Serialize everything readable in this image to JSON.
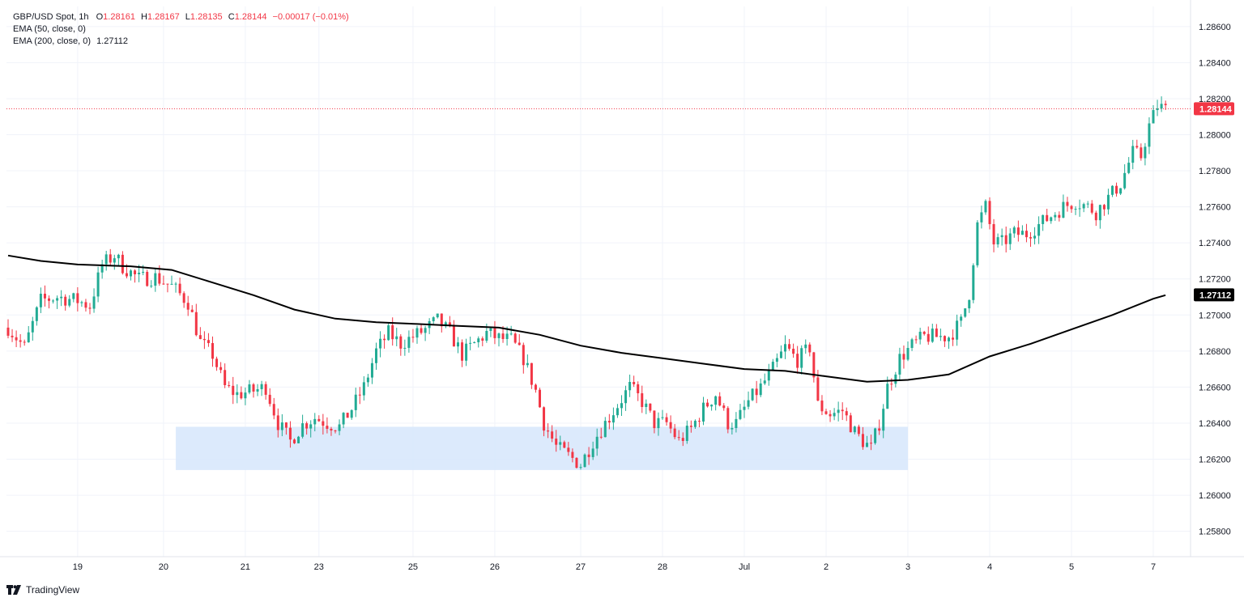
{
  "header": {
    "symbol": "GBP/USD Spot, 1h",
    "o_label": "O",
    "o_value": "1.28161",
    "h_label": "H",
    "h_value": "1.28167",
    "l_label": "L",
    "l_value": "1.28135",
    "c_label": "C",
    "c_value": "1.28144",
    "change": "−0.00017 (−0.01%)",
    "ema50_label": "EMA (50, close, 0)",
    "ema200_label": "EMA (200, close, 0)",
    "ema200_value": "1.27112"
  },
  "brand": {
    "name": "TradingView",
    "icon": "tradingview-logo-icon"
  },
  "colors": {
    "up": "#22ab94",
    "down": "#f23645",
    "ema200": "#000000",
    "zone": "#d6e6fb",
    "grid": "#f0f3fa",
    "price_line": "#f23645"
  },
  "chart_data": {
    "type": "candlestick",
    "title": "GBP/USD Spot, 1h",
    "ylim": [
      1.2568,
      1.2872
    ],
    "yticks": [
      "1.28600",
      "1.28400",
      "1.28200",
      "1.28000",
      "1.27800",
      "1.27600",
      "1.27400",
      "1.27200",
      "1.27000",
      "1.26800",
      "1.26600",
      "1.26400",
      "1.26200",
      "1.26000",
      "1.25800"
    ],
    "xtick_labels": [
      "19",
      "20",
      "21",
      "23",
      "25",
      "26",
      "27",
      "28",
      "Jul",
      "2",
      "3",
      "4",
      "5",
      "7"
    ],
    "xtick_bar_index": [
      17,
      38,
      58,
      76,
      99,
      119,
      140,
      160,
      180,
      200,
      220,
      240,
      260,
      280
    ],
    "total_bars": 285,
    "last_price": {
      "value": 1.28144,
      "label": "1.28144"
    },
    "ema200_last": {
      "value": 1.27112,
      "label": "1.27112"
    },
    "support_zone": {
      "low": 1.2614,
      "high": 1.2638,
      "from_bar": 41,
      "to_bar": 220
    },
    "price_path": [
      [
        0,
        1.2693
      ],
      [
        4,
        1.2682
      ],
      [
        8,
        1.2708
      ],
      [
        12,
        1.271
      ],
      [
        17,
        1.2708
      ],
      [
        20,
        1.2705
      ],
      [
        23,
        1.2728
      ],
      [
        26,
        1.2733
      ],
      [
        28,
        1.2727
      ],
      [
        32,
        1.272
      ],
      [
        36,
        1.2721
      ],
      [
        40,
        1.2716
      ],
      [
        44,
        1.2707
      ],
      [
        47,
        1.2685
      ],
      [
        50,
        1.2678
      ],
      [
        53,
        1.266
      ],
      [
        56,
        1.2656
      ],
      [
        60,
        1.2658
      ],
      [
        63,
        1.266
      ],
      [
        66,
        1.264
      ],
      [
        69,
        1.263
      ],
      [
        72,
        1.2639
      ],
      [
        75,
        1.2643
      ],
      [
        78,
        1.264
      ],
      [
        81,
        1.2638
      ],
      [
        84,
        1.2648
      ],
      [
        87,
        1.266
      ],
      [
        90,
        1.268
      ],
      [
        93,
        1.269
      ],
      [
        96,
        1.2684
      ],
      [
        99,
        1.2688
      ],
      [
        102,
        1.2692
      ],
      [
        105,
        1.2697
      ],
      [
        108,
        1.269
      ],
      [
        111,
        1.2678
      ],
      [
        114,
        1.2684
      ],
      [
        117,
        1.269
      ],
      [
        120,
        1.2687
      ],
      [
        123,
        1.2686
      ],
      [
        126,
        1.2676
      ],
      [
        129,
        1.2658
      ],
      [
        131,
        1.264
      ],
      [
        134,
        1.2627
      ],
      [
        137,
        1.2622
      ],
      [
        140,
        1.2617
      ],
      [
        143,
        1.263
      ],
      [
        146,
        1.264
      ],
      [
        149,
        1.265
      ],
      [
        152,
        1.266
      ],
      [
        155,
        1.2652
      ],
      [
        158,
        1.264
      ],
      [
        161,
        1.264
      ],
      [
        164,
        1.263
      ],
      [
        167,
        1.2637
      ],
      [
        170,
        1.2648
      ],
      [
        173,
        1.2656
      ],
      [
        176,
        1.264
      ],
      [
        178,
        1.264
      ],
      [
        181,
        1.2652
      ],
      [
        184,
        1.266
      ],
      [
        187,
        1.267
      ],
      [
        190,
        1.2682
      ],
      [
        193,
        1.2675
      ],
      [
        196,
        1.2682
      ],
      [
        198,
        1.265
      ],
      [
        201,
        1.2645
      ],
      [
        204,
        1.2647
      ],
      [
        207,
        1.2635
      ],
      [
        209,
        1.263
      ],
      [
        211,
        1.2626
      ],
      [
        213,
        1.264
      ],
      [
        215,
        1.266
      ],
      [
        218,
        1.2676
      ],
      [
        221,
        1.2683
      ],
      [
        224,
        1.2688
      ],
      [
        227,
        1.2688
      ],
      [
        230,
        1.2688
      ],
      [
        233,
        1.2696
      ],
      [
        235,
        1.2712
      ],
      [
        237,
        1.275
      ],
      [
        239,
        1.276
      ],
      [
        241,
        1.274
      ],
      [
        243,
        1.274
      ],
      [
        246,
        1.2745
      ],
      [
        249,
        1.2745
      ],
      [
        252,
        1.275
      ],
      [
        255,
        1.2755
      ],
      [
        258,
        1.276
      ],
      [
        261,
        1.2763
      ],
      [
        264,
        1.276
      ],
      [
        266,
        1.2757
      ],
      [
        269,
        1.2765
      ],
      [
        272,
        1.2773
      ],
      [
        275,
        1.279
      ],
      [
        277,
        1.2788
      ],
      [
        279,
        1.2805
      ],
      [
        281,
        1.2816
      ],
      [
        283,
        1.2814
      ]
    ],
    "ema200_path": [
      [
        0,
        1.2733
      ],
      [
        8,
        1.273
      ],
      [
        17,
        1.2728
      ],
      [
        30,
        1.2727
      ],
      [
        40,
        1.2725
      ],
      [
        50,
        1.2718
      ],
      [
        60,
        1.2711
      ],
      [
        70,
        1.2703
      ],
      [
        80,
        1.2698
      ],
      [
        90,
        1.2696
      ],
      [
        100,
        1.2695
      ],
      [
        110,
        1.2694
      ],
      [
        120,
        1.2693
      ],
      [
        130,
        1.2689
      ],
      [
        140,
        1.2683
      ],
      [
        150,
        1.2679
      ],
      [
        160,
        1.2676
      ],
      [
        170,
        1.2673
      ],
      [
        180,
        1.267
      ],
      [
        190,
        1.2669
      ],
      [
        200,
        1.2666
      ],
      [
        210,
        1.2663
      ],
      [
        220,
        1.2664
      ],
      [
        230,
        1.2667
      ],
      [
        240,
        1.2677
      ],
      [
        250,
        1.2684
      ],
      [
        260,
        1.2692
      ],
      [
        270,
        1.27
      ],
      [
        280,
        1.2709
      ],
      [
        283,
        1.2711
      ]
    ]
  }
}
